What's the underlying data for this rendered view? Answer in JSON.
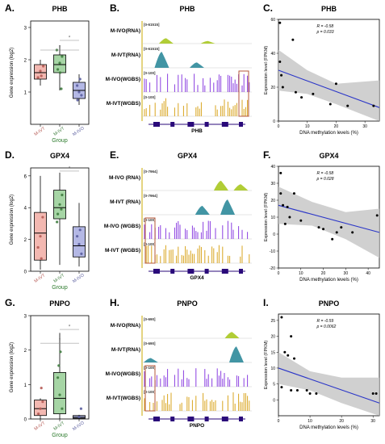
{
  "panels": [
    {
      "row": 0,
      "box": {
        "letter": "A.",
        "gene": "PHB",
        "ylabel": "Gene expression (log2)",
        "xlabel": "Group",
        "ylim": [
          0,
          3.2
        ],
        "yticks": [
          1,
          2,
          3
        ],
        "groups": [
          {
            "label": "M-IVT",
            "color": "#f3b8b1",
            "stroke": "#b65b55",
            "q1": 1.4,
            "median": 1.6,
            "q3": 1.85,
            "wlo": 1.2,
            "whi": 2.0,
            "points": [
              [
                0.0,
                1.65
              ],
              [
                -0.12,
                1.45
              ],
              [
                0.15,
                1.8
              ],
              [
                0.05,
                1.5
              ]
            ]
          },
          {
            "label": "M-IVT",
            "color": "#a6d5a5",
            "stroke": "#3f7d3f",
            "q1": 1.6,
            "median": 1.85,
            "q3": 2.15,
            "wlo": 1.05,
            "whi": 2.45,
            "points": [
              [
                0.0,
                1.9
              ],
              [
                -0.1,
                1.7
              ],
              [
                0.12,
                2.1
              ],
              [
                -0.15,
                2.3
              ],
              [
                0.08,
                1.1
              ],
              [
                0.02,
                1.6
              ]
            ]
          },
          {
            "label": "M-IVO",
            "color": "#b4b8e5",
            "stroke": "#5a5e9f",
            "q1": 0.8,
            "median": 1.05,
            "q3": 1.3,
            "wlo": 0.6,
            "whi": 1.55,
            "points": [
              [
                0.0,
                1.0
              ],
              [
                -0.1,
                1.2
              ],
              [
                0.12,
                0.9
              ],
              [
                0.05,
                1.4
              ],
              [
                -0.08,
                0.75
              ]
            ]
          }
        ],
        "sig": [
          {
            "from": 1,
            "to": 2,
            "y": 2.6,
            "label": "*"
          },
          {
            "from": 0,
            "to": 2,
            "y": 2.3,
            "label": "*"
          }
        ]
      },
      "tracks": {
        "letter": "B.",
        "gene": "PHB",
        "gene_label": "PHB",
        "labels": [
          "M-IVO(RNA)",
          "M-IVT(RNA)",
          "M-IVO(WGBS)",
          "M-IVT(WGBS)"
        ],
        "scales": [
          "[0-61515]",
          "[0-61515]",
          "[0-100]",
          "[0-100]"
        ],
        "rna_green": [
          [
            0.22,
            0.3
          ],
          [
            0.6,
            0.15
          ]
        ],
        "rna_teal": [
          [
            0.18,
            0.9
          ],
          [
            0.5,
            0.3
          ]
        ],
        "highlight": "right"
      },
      "scatter": {
        "letter": "C.",
        "gene": "PHB",
        "ylabel": "Expression level (FPKM)",
        "xlabel": "DNA methylation levels (%)",
        "R": "R = -0.58",
        "p": "p = 0.033",
        "xlim": [
          0,
          35
        ],
        "ylim": [
          0,
          60
        ],
        "xticks": [
          0,
          10,
          20,
          30
        ],
        "yticks": [
          0,
          20,
          40,
          60
        ],
        "points": [
          [
            0.5,
            58
          ],
          [
            0.5,
            35
          ],
          [
            1,
            27
          ],
          [
            1.5,
            20
          ],
          [
            5,
            48
          ],
          [
            6,
            17
          ],
          [
            8,
            14
          ],
          [
            12,
            16
          ],
          [
            18,
            10
          ],
          [
            20,
            22
          ],
          [
            24,
            9
          ],
          [
            33,
            9
          ]
        ],
        "fit": [
          [
            0,
            30
          ],
          [
            35,
            8
          ]
        ],
        "band_hi": [
          [
            0,
            42
          ],
          [
            10,
            30
          ],
          [
            20,
            22
          ],
          [
            35,
            24
          ]
        ],
        "band_lo": [
          [
            0,
            18
          ],
          [
            10,
            16
          ],
          [
            20,
            10
          ],
          [
            35,
            -8
          ]
        ]
      }
    },
    {
      "row": 1,
      "box": {
        "letter": "D.",
        "gene": "GPX4",
        "ylabel": "Gene expression (log2)",
        "xlabel": "Group",
        "ylim": [
          0,
          6.5
        ],
        "yticks": [
          0,
          2,
          4,
          6
        ],
        "groups": [
          {
            "label": "M-IVT",
            "color": "#f3b8b1",
            "stroke": "#b65b55",
            "q1": 0.7,
            "median": 2.4,
            "q3": 3.7,
            "wlo": 0.1,
            "whi": 6.0,
            "points": [
              [
                0.0,
                2.2
              ],
              [
                -0.12,
                1.5
              ],
              [
                0.12,
                3.4
              ],
              [
                0.05,
                0.8
              ]
            ]
          },
          {
            "label": "M-IVT",
            "color": "#a6d5a5",
            "stroke": "#3f7d3f",
            "q1": 3.3,
            "median": 4.0,
            "q3": 5.1,
            "wlo": 0.4,
            "whi": 6.2,
            "points": [
              [
                0.0,
                4.2
              ],
              [
                -0.1,
                3.6
              ],
              [
                0.12,
                4.8
              ],
              [
                -0.14,
                3.1
              ],
              [
                0.08,
                3.9
              ]
            ]
          },
          {
            "label": "M-IVO",
            "color": "#b4b8e5",
            "stroke": "#5a5e9f",
            "q1": 0.9,
            "median": 1.6,
            "q3": 2.8,
            "wlo": 0.3,
            "whi": 4.3,
            "points": [
              [
                0.0,
                1.7
              ],
              [
                -0.1,
                2.2
              ],
              [
                0.12,
                1.1
              ],
              [
                0.05,
                2.6
              ]
            ]
          }
        ],
        "sig": [
          {
            "from": 1,
            "to": 2,
            "y": 6.3,
            "label": "*"
          }
        ]
      },
      "tracks": {
        "letter": "E.",
        "gene": "GPX4",
        "gene_label": "GPX4",
        "labels": [
          "M-IVO (RNA)",
          "M-IVT (RNA)",
          "M-IVO (WGBS)",
          "M-IVT (WGBS)"
        ],
        "scales": [
          "[0-7964]",
          "[0-7964]",
          "[0-100]",
          "[0-100]"
        ],
        "rna_green": [
          [
            0.72,
            0.55
          ],
          [
            0.9,
            0.35
          ]
        ],
        "rna_teal": [
          [
            0.55,
            0.5
          ],
          [
            0.78,
            0.85
          ]
        ],
        "highlight": "left"
      },
      "scatter": {
        "letter": "F.",
        "gene": "GPX4",
        "ylabel": "Expression level (FPKM)",
        "xlabel": "DNA methylation levels (%)",
        "R": "R = -0.58",
        "p": "p = 0.028",
        "xlim": [
          0,
          45
        ],
        "ylim": [
          -20,
          40
        ],
        "xticks": [
          0,
          10,
          20,
          30,
          40
        ],
        "yticks": [
          -20,
          -10,
          0,
          10,
          20,
          30,
          40
        ],
        "points": [
          [
            1,
            36
          ],
          [
            1,
            24
          ],
          [
            2,
            17
          ],
          [
            4,
            16
          ],
          [
            5,
            10
          ],
          [
            3,
            6
          ],
          [
            7,
            24
          ],
          [
            10,
            8
          ],
          [
            18,
            4
          ],
          [
            20,
            3
          ],
          [
            24,
            -3
          ],
          [
            26,
            1
          ],
          [
            28,
            4
          ],
          [
            33,
            1
          ],
          [
            44,
            11
          ]
        ],
        "fit": [
          [
            0,
            17
          ],
          [
            45,
            1
          ]
        ],
        "band_hi": [
          [
            0,
            28
          ],
          [
            15,
            19
          ],
          [
            30,
            13
          ],
          [
            45,
            15
          ]
        ],
        "band_lo": [
          [
            0,
            6
          ],
          [
            15,
            5
          ],
          [
            30,
            -3
          ],
          [
            45,
            -14
          ]
        ]
      }
    },
    {
      "row": 2,
      "box": {
        "letter": "G.",
        "gene": "PNPO",
        "ylabel": "Gene expression (log2)",
        "xlabel": "Group",
        "ylim": [
          0,
          3.0
        ],
        "yticks": [
          0,
          1,
          2,
          3
        ],
        "groups": [
          {
            "label": "M-IVT",
            "color": "#f3b8b1",
            "stroke": "#b65b55",
            "q1": 0.1,
            "median": 0.3,
            "q3": 0.55,
            "wlo": 0.0,
            "whi": 0.6,
            "points": [
              [
                0.0,
                0.3
              ],
              [
                -0.1,
                0.15
              ],
              [
                0.12,
                0.5
              ],
              [
                0.05,
                0.9
              ]
            ]
          },
          {
            "label": "M-IVT",
            "color": "#a6d5a5",
            "stroke": "#3f7d3f",
            "q1": 0.15,
            "median": 0.6,
            "q3": 1.35,
            "wlo": 0.0,
            "whi": 2.5,
            "points": [
              [
                0.0,
                0.7
              ],
              [
                -0.1,
                1.2
              ],
              [
                0.12,
                0.3
              ],
              [
                0.04,
                1.95
              ],
              [
                -0.05,
                1.55
              ]
            ]
          },
          {
            "label": "M-IVO",
            "color": "#b4b8e5",
            "stroke": "#5a5e9f",
            "q1": 0.02,
            "median": 0.05,
            "q3": 0.1,
            "wlo": 0.0,
            "whi": 0.12,
            "points": [
              [
                0.0,
                0.06
              ],
              [
                0.1,
                0.3
              ]
            ]
          }
        ],
        "sig": [
          {
            "from": 1,
            "to": 2,
            "y": 2.6,
            "label": "*"
          },
          {
            "from": 0,
            "to": 2,
            "y": 2.2,
            "label": "*"
          }
        ]
      },
      "tracks": {
        "letter": "H.",
        "gene": "PNPO",
        "gene_label": "PNPO",
        "labels": [
          "M-IVO(RNA)",
          "M-IVT(RNA)",
          "M-IVO(WGBS)",
          "M-IVT(WGBS)"
        ],
        "scales": [
          "[0-690]",
          "[0-690]",
          "[0-100]",
          "[0-100]"
        ],
        "rna_green": [
          [
            0.82,
            0.35
          ]
        ],
        "rna_teal": [
          [
            0.08,
            0.25
          ],
          [
            0.86,
            0.9
          ]
        ],
        "highlight": "left"
      },
      "scatter": {
        "letter": "I.",
        "gene": "PNPO",
        "ylabel": "Expression level (FPKM)",
        "xlabel": "DNA methylation levels (%)",
        "R": "R = -0.59",
        "p": "p = 0.0062",
        "xlim": [
          0,
          32
        ],
        "ylim": [
          -5,
          27
        ],
        "xticks": [
          0,
          10,
          20,
          30
        ],
        "yticks": [
          0,
          5,
          10,
          15,
          20,
          25
        ],
        "points": [
          [
            1,
            26
          ],
          [
            2,
            15
          ],
          [
            4,
            20
          ],
          [
            3,
            14
          ],
          [
            5,
            13
          ],
          [
            1,
            4
          ],
          [
            4,
            3
          ],
          [
            6,
            3
          ],
          [
            9,
            3
          ],
          [
            10,
            2
          ],
          [
            12,
            2
          ],
          [
            30,
            2
          ],
          [
            31,
            2
          ]
        ],
        "fit": [
          [
            0,
            10
          ],
          [
            32,
            -1
          ]
        ],
        "band_hi": [
          [
            0,
            15
          ],
          [
            10,
            9
          ],
          [
            20,
            7
          ],
          [
            32,
            7
          ]
        ],
        "band_lo": [
          [
            0,
            5
          ],
          [
            10,
            3
          ],
          [
            20,
            -1
          ],
          [
            32,
            -8
          ]
        ]
      }
    }
  ]
}
